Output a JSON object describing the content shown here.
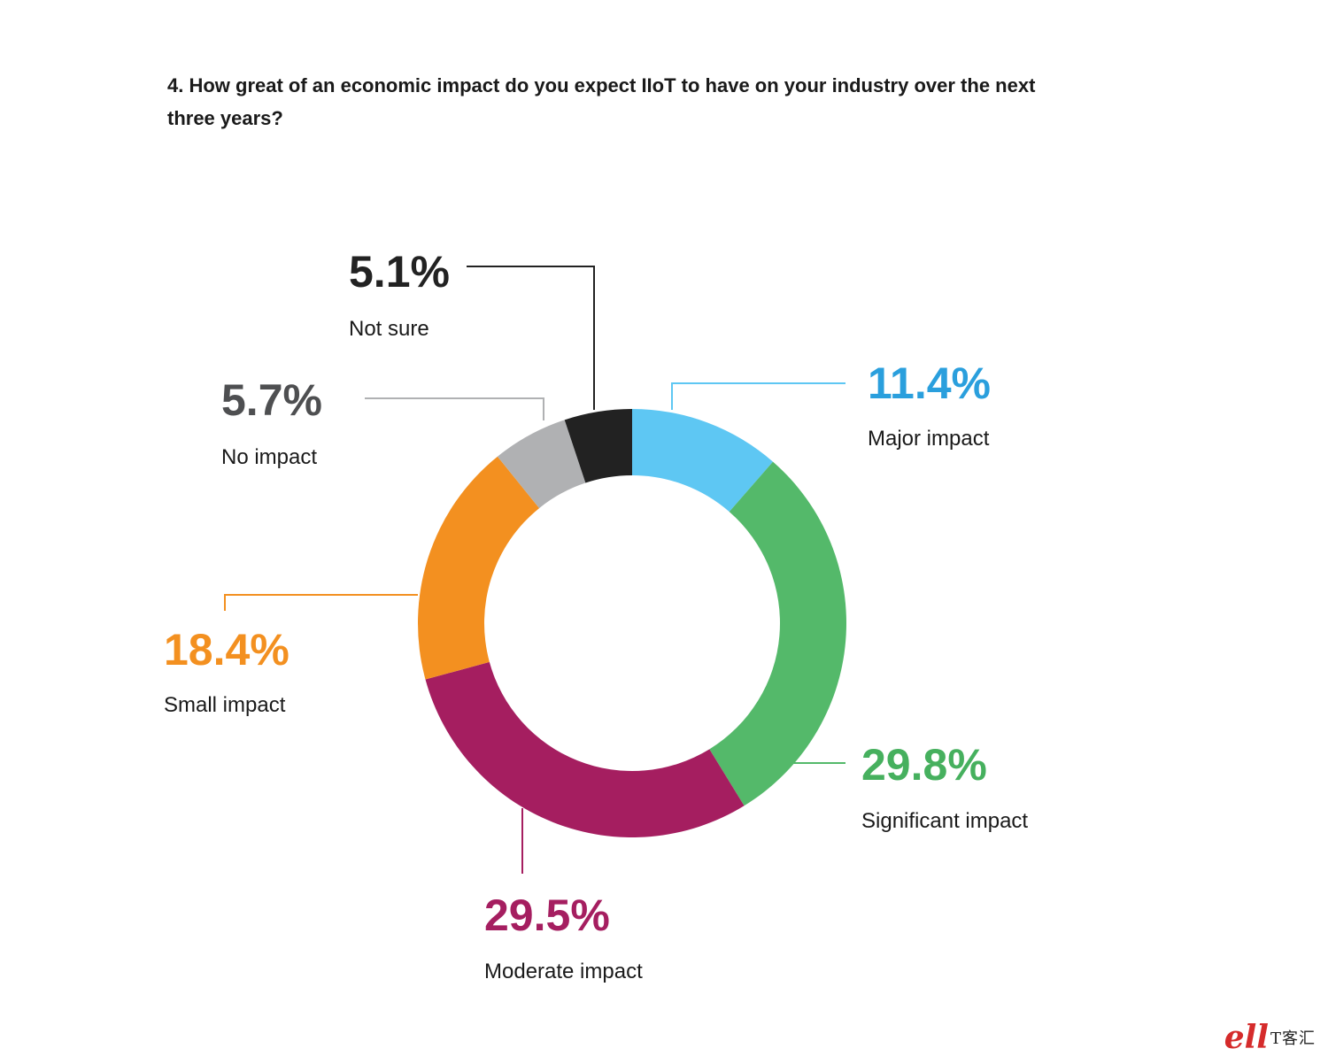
{
  "question": "4. How great of an economic impact do you expect IIoT to have on your industry over the next three years?",
  "chart_data": {
    "type": "pie",
    "donut": true,
    "segments": [
      {
        "label": "Major impact",
        "value": 11.4,
        "display": "11.4%",
        "color": "#5ec7f3",
        "label_color": "#2a9fdd"
      },
      {
        "label": "Significant impact",
        "value": 29.8,
        "display": "29.8%",
        "color": "#54b96a",
        "label_color": "#46b05e"
      },
      {
        "label": "Moderate impact",
        "value": 29.5,
        "display": "29.5%",
        "color": "#a51e60",
        "label_color": "#a51e60"
      },
      {
        "label": "Small impact",
        "value": 18.4,
        "display": "18.4%",
        "color": "#f39020",
        "label_color": "#f39020"
      },
      {
        "label": "No impact",
        "value": 5.7,
        "display": "5.7%",
        "color": "#b0b1b3",
        "label_color": "#4e4f51"
      },
      {
        "label": "Not sure",
        "value": 5.1,
        "display": "5.1%",
        "color": "#222222",
        "label_color": "#222222"
      }
    ]
  },
  "watermark": {
    "logo": "ell",
    "text": "T客汇"
  }
}
